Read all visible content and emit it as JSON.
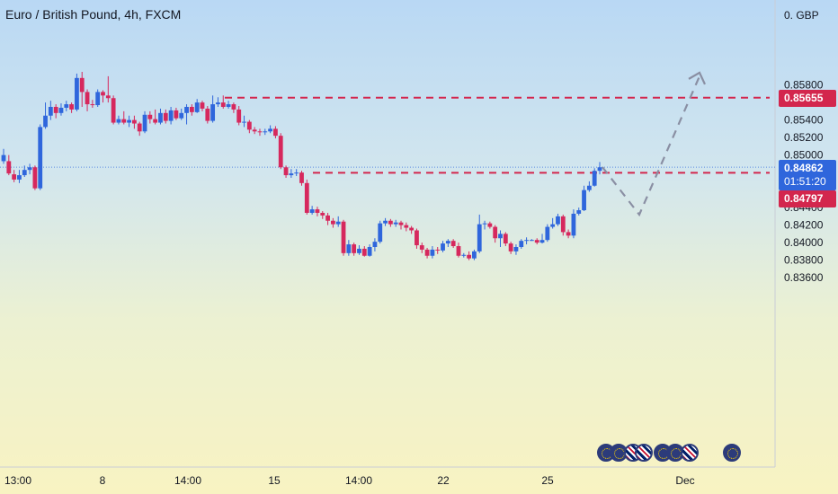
{
  "header": {
    "title": "Euro / British Pound, 4h, FXCM"
  },
  "price_axis": {
    "currency": "0. GBP",
    "labels": [
      "0.85800",
      "0.85600",
      "0.85400",
      "0.85200",
      "0.85000",
      "0.84600",
      "0.84400",
      "0.84200",
      "0.84000",
      "0.83800",
      "0.83600"
    ]
  },
  "time_axis": {
    "labels": [
      "13:00",
      "8",
      "14:00",
      "15",
      "14:00",
      "22",
      "25",
      "Dec"
    ]
  },
  "price_tags": {
    "upper_level": "0.85655",
    "current_price": "0.84862",
    "countdown": "01:51:20",
    "lower_level": "0.84797"
  },
  "colors": {
    "up": "#2f66dc",
    "down": "#d6285d",
    "level_line": "#d3264d",
    "current_tag": "#2f66dc",
    "level_tag": "#d3264d",
    "projection": "#8a8fa3"
  },
  "events": [
    {
      "icon": "eu-flag-icon"
    },
    {
      "icon": "eu-flag-icon"
    },
    {
      "icon": "uk-flag-icon"
    },
    {
      "icon": "uk-flag-icon"
    },
    {
      "icon": "eu-flag-icon"
    },
    {
      "icon": "eu-flag-icon"
    },
    {
      "icon": "uk-flag-icon"
    },
    {
      "icon": "eu-flag-icon"
    }
  ],
  "chart_data": {
    "type": "candlestick",
    "title": "Euro / British Pound, 4h, FXCM",
    "ylim": [
      0.835,
      0.86
    ],
    "horizontal_levels": [
      0.85655,
      0.84797
    ],
    "current_price": 0.84862,
    "projection_path": [
      0.84862,
      0.8432,
      0.859
    ],
    "candles": [
      [
        0.8493,
        0.85,
        0.8507,
        0.849
      ],
      [
        0.8493,
        0.8479,
        0.85,
        0.8477
      ],
      [
        0.8478,
        0.8472,
        0.8483,
        0.8469
      ],
      [
        0.8472,
        0.8477,
        0.8483,
        0.8468
      ],
      [
        0.8477,
        0.8483,
        0.8488,
        0.8475
      ],
      [
        0.8483,
        0.8486,
        0.849,
        0.8478
      ],
      [
        0.8486,
        0.8462,
        0.8488,
        0.846
      ],
      [
        0.8462,
        0.8532,
        0.8535,
        0.846
      ],
      [
        0.8532,
        0.8545,
        0.856,
        0.853
      ],
      [
        0.8545,
        0.8555,
        0.8562,
        0.854
      ],
      [
        0.8555,
        0.8548,
        0.8558,
        0.8542
      ],
      [
        0.8548,
        0.8554,
        0.8559,
        0.8545
      ],
      [
        0.8554,
        0.8558,
        0.8562,
        0.855
      ],
      [
        0.8558,
        0.8552,
        0.856,
        0.8548
      ],
      [
        0.8552,
        0.8588,
        0.8593,
        0.855
      ],
      [
        0.8588,
        0.8572,
        0.8595,
        0.8555
      ],
      [
        0.8572,
        0.8558,
        0.8575,
        0.855
      ],
      [
        0.8558,
        0.8557,
        0.8563,
        0.8554
      ],
      [
        0.8557,
        0.8572,
        0.8575,
        0.8555
      ],
      [
        0.8572,
        0.8568,
        0.8574,
        0.856
      ],
      [
        0.8568,
        0.8565,
        0.859,
        0.856
      ],
      [
        0.8565,
        0.8537,
        0.8568,
        0.8535
      ],
      [
        0.8537,
        0.8541,
        0.8545,
        0.8535
      ],
      [
        0.8541,
        0.8537,
        0.855,
        0.8535
      ],
      [
        0.8537,
        0.854,
        0.8545,
        0.8532
      ],
      [
        0.854,
        0.8536,
        0.8545,
        0.853
      ],
      [
        0.8536,
        0.8527,
        0.8538,
        0.8522
      ],
      [
        0.8527,
        0.8546,
        0.855,
        0.8525
      ],
      [
        0.8546,
        0.8541,
        0.855,
        0.8536
      ],
      [
        0.8541,
        0.8537,
        0.8552,
        0.8535
      ],
      [
        0.8537,
        0.8548,
        0.8553,
        0.8535
      ],
      [
        0.8548,
        0.8539,
        0.8552,
        0.8536
      ],
      [
        0.8539,
        0.8551,
        0.8555,
        0.8535
      ],
      [
        0.8551,
        0.8542,
        0.8554,
        0.854
      ],
      [
        0.8542,
        0.8548,
        0.8553,
        0.854
      ],
      [
        0.8548,
        0.8555,
        0.8558,
        0.8535
      ],
      [
        0.8555,
        0.8549,
        0.8558,
        0.8545
      ],
      [
        0.8549,
        0.856,
        0.8564,
        0.8548
      ],
      [
        0.856,
        0.8553,
        0.8562,
        0.855
      ],
      [
        0.8553,
        0.8539,
        0.8556,
        0.8536
      ],
      [
        0.8539,
        0.8558,
        0.8568,
        0.8537
      ],
      [
        0.8558,
        0.856,
        0.8566,
        0.8555
      ],
      [
        0.856,
        0.8555,
        0.8568,
        0.8553
      ],
      [
        0.8555,
        0.8558,
        0.8562,
        0.8553
      ],
      [
        0.8558,
        0.8552,
        0.856,
        0.8548
      ],
      [
        0.8552,
        0.8537,
        0.8556,
        0.8534
      ],
      [
        0.8537,
        0.8538,
        0.8545,
        0.8532
      ],
      [
        0.8538,
        0.8529,
        0.854,
        0.8525
      ],
      [
        0.8529,
        0.8527,
        0.8532,
        0.8524
      ],
      [
        0.8527,
        0.8526,
        0.853,
        0.8522
      ],
      [
        0.8526,
        0.8527,
        0.853,
        0.8523
      ],
      [
        0.8527,
        0.853,
        0.8534,
        0.8525
      ],
      [
        0.853,
        0.8522,
        0.8533,
        0.8519
      ],
      [
        0.8522,
        0.8486,
        0.8525,
        0.8484
      ],
      [
        0.8486,
        0.8477,
        0.8488,
        0.8474
      ],
      [
        0.8477,
        0.8479,
        0.8484,
        0.8474
      ],
      [
        0.8479,
        0.848,
        0.8484,
        0.8476
      ],
      [
        0.848,
        0.8468,
        0.8482,
        0.8465
      ],
      [
        0.8468,
        0.8434,
        0.8472,
        0.8432
      ],
      [
        0.8434,
        0.8438,
        0.8442,
        0.8432
      ],
      [
        0.8438,
        0.8434,
        0.8441,
        0.843
      ],
      [
        0.8434,
        0.8431,
        0.8436,
        0.8427
      ],
      [
        0.8431,
        0.8425,
        0.8434,
        0.842
      ],
      [
        0.8425,
        0.8421,
        0.8428,
        0.8417
      ],
      [
        0.8421,
        0.8424,
        0.843,
        0.8418
      ],
      [
        0.8424,
        0.8388,
        0.8426,
        0.8385
      ],
      [
        0.8388,
        0.8398,
        0.8403,
        0.8385
      ],
      [
        0.8398,
        0.8388,
        0.84,
        0.8385
      ],
      [
        0.8388,
        0.8393,
        0.8397,
        0.8386
      ],
      [
        0.8393,
        0.8385,
        0.8396,
        0.8384
      ],
      [
        0.8385,
        0.8395,
        0.8398,
        0.8384
      ],
      [
        0.8395,
        0.8401,
        0.8405,
        0.839
      ],
      [
        0.8401,
        0.8422,
        0.8425,
        0.8399
      ],
      [
        0.8422,
        0.8425,
        0.8428,
        0.8419
      ],
      [
        0.8425,
        0.8421,
        0.8427,
        0.8418
      ],
      [
        0.8421,
        0.8423,
        0.8426,
        0.8418
      ],
      [
        0.8423,
        0.842,
        0.8425,
        0.8415
      ],
      [
        0.842,
        0.8417,
        0.8423,
        0.8413
      ],
      [
        0.8417,
        0.8414,
        0.8419,
        0.841
      ],
      [
        0.8414,
        0.8397,
        0.8416,
        0.8393
      ],
      [
        0.8397,
        0.8392,
        0.84,
        0.8388
      ],
      [
        0.8392,
        0.8385,
        0.8394,
        0.8382
      ],
      [
        0.8385,
        0.8392,
        0.8396,
        0.8382
      ],
      [
        0.8392,
        0.8391,
        0.8395,
        0.8387
      ],
      [
        0.8391,
        0.8399,
        0.8402,
        0.8389
      ],
      [
        0.8399,
        0.8402,
        0.8404,
        0.8395
      ],
      [
        0.8402,
        0.8396,
        0.8404,
        0.8394
      ],
      [
        0.8396,
        0.8385,
        0.84,
        0.8383
      ],
      [
        0.8385,
        0.8386,
        0.8388,
        0.8383
      ],
      [
        0.8386,
        0.8382,
        0.839,
        0.838
      ],
      [
        0.8382,
        0.839,
        0.8392,
        0.838
      ],
      [
        0.839,
        0.8421,
        0.8432,
        0.8388
      ],
      [
        0.8421,
        0.8422,
        0.8425,
        0.8415
      ],
      [
        0.8422,
        0.8418,
        0.8424,
        0.8416
      ],
      [
        0.8418,
        0.8405,
        0.842,
        0.84
      ],
      [
        0.8405,
        0.841,
        0.8414,
        0.8395
      ],
      [
        0.841,
        0.8399,
        0.8412,
        0.8396
      ],
      [
        0.8399,
        0.839,
        0.8401,
        0.8387
      ],
      [
        0.839,
        0.8395,
        0.8398,
        0.8386
      ],
      [
        0.8395,
        0.8402,
        0.8404,
        0.8393
      ],
      [
        0.8402,
        0.8403,
        0.8406,
        0.8398
      ],
      [
        0.8403,
        0.8403,
        0.8404,
        0.8402
      ],
      [
        0.8403,
        0.84,
        0.8405,
        0.8398
      ],
      [
        0.84,
        0.8403,
        0.841,
        0.8399
      ],
      [
        0.8403,
        0.8418,
        0.8421,
        0.8401
      ],
      [
        0.8418,
        0.8421,
        0.8428,
        0.8416
      ],
      [
        0.8421,
        0.843,
        0.8433,
        0.8419
      ],
      [
        0.843,
        0.8412,
        0.8432,
        0.8408
      ],
      [
        0.8412,
        0.8408,
        0.8415,
        0.8405
      ],
      [
        0.8408,
        0.8433,
        0.8438,
        0.8405
      ],
      [
        0.8433,
        0.8437,
        0.844,
        0.8431
      ],
      [
        0.8437,
        0.846,
        0.8465,
        0.8436
      ],
      [
        0.846,
        0.8465,
        0.847,
        0.8458
      ],
      [
        0.8465,
        0.8482,
        0.8485,
        0.8464
      ],
      [
        0.8482,
        0.8486,
        0.8492,
        0.8478
      ]
    ]
  }
}
